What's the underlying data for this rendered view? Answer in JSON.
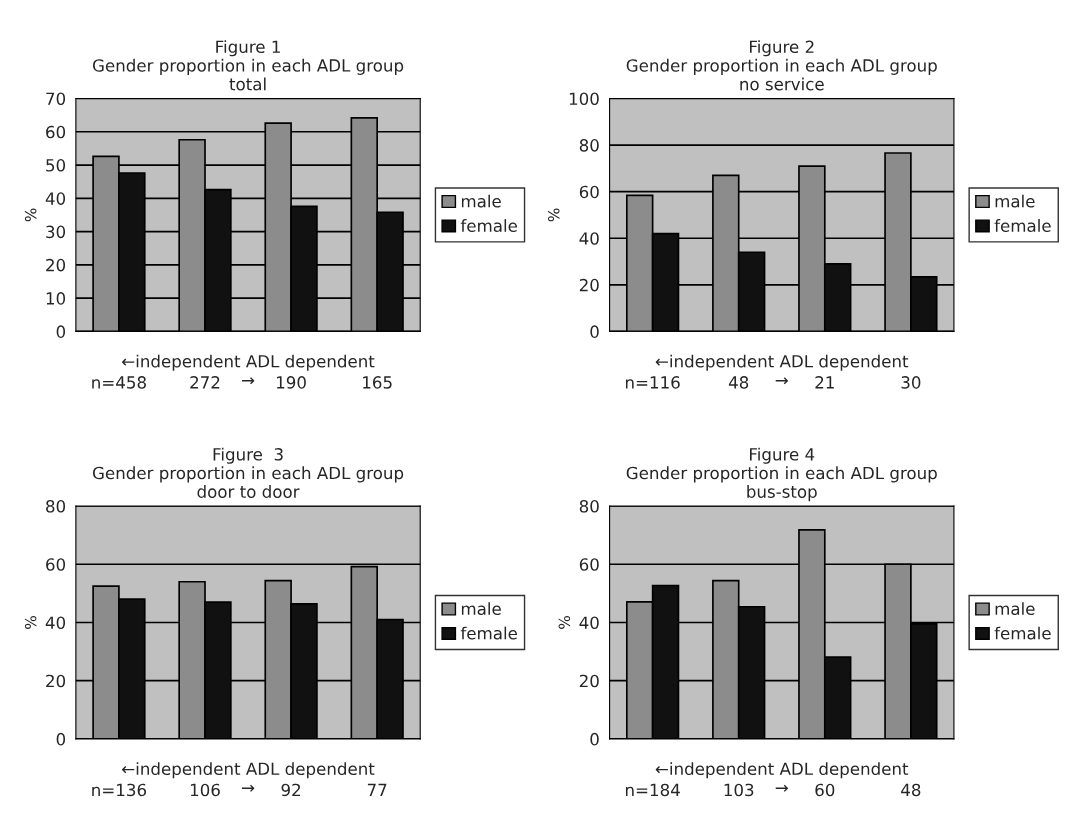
{
  "chart_data": [
    {
      "type": "bar",
      "title": "Figure 1\nGender proportion in each ADL group\ntotal",
      "xlabel": "←independent ADL dependent\n→",
      "ylabel": "%",
      "categories": [
        "n=458",
        "272",
        "190",
        "165"
      ],
      "series": [
        {
          "name": "male",
          "color": "#8c8c8c",
          "values": [
            52.6,
            57.6,
            62.6,
            64.2
          ]
        },
        {
          "name": "female",
          "color": "#111111",
          "values": [
            47.6,
            42.6,
            37.6,
            35.8
          ]
        }
      ],
      "ylim": [
        0,
        70
      ],
      "yticks": [
        0,
        10,
        20,
        30,
        40,
        50,
        60,
        70
      ],
      "grid": "y",
      "legend": "right"
    },
    {
      "type": "bar",
      "title": "Figure 2\nGender proportion in each ADL group\nno service",
      "xlabel": "←independent ADL dependent\n→",
      "ylabel": "%",
      "categories": [
        "n=116",
        "48",
        "21",
        "30"
      ],
      "series": [
        {
          "name": "male",
          "color": "#8c8c8c",
          "values": [
            58.4,
            67,
            71,
            76.6
          ]
        },
        {
          "name": "female",
          "color": "#111111",
          "values": [
            42,
            34,
            29,
            23.4
          ]
        }
      ],
      "ylim": [
        0,
        100
      ],
      "yticks": [
        0,
        20,
        40,
        60,
        80,
        100
      ],
      "grid": "y",
      "legend": "right"
    },
    {
      "type": "bar",
      "title": "Figure  3\nGender proportion in each ADL group\ndoor to door",
      "xlabel": "←independent ADL dependent\n→",
      "ylabel": "%",
      "categories": [
        "n=136",
        "106",
        "92",
        "77"
      ],
      "series": [
        {
          "name": "male",
          "color": "#8c8c8c",
          "values": [
            52.5,
            54,
            54.4,
            59.2
          ]
        },
        {
          "name": "female",
          "color": "#111111",
          "values": [
            48,
            47,
            46.4,
            41
          ]
        }
      ],
      "ylim": [
        0,
        80
      ],
      "yticks": [
        0,
        20,
        40,
        60,
        80
      ],
      "grid": "y",
      "legend": "right"
    },
    {
      "type": "bar",
      "title": "Figure 4\nGender proportion in each ADL group\nbus-stop",
      "xlabel": "←independent ADL dependent\n→",
      "ylabel": "%",
      "categories": [
        "n=184",
        "103",
        "60",
        "48"
      ],
      "series": [
        {
          "name": "male",
          "color": "#8c8c8c",
          "values": [
            47.1,
            54.4,
            71.8,
            60
          ]
        },
        {
          "name": "female",
          "color": "#111111",
          "values": [
            52.7,
            45.4,
            28.1,
            39.5
          ]
        }
      ],
      "ylim": [
        0,
        80
      ],
      "yticks": [
        0,
        20,
        40,
        60,
        80
      ],
      "grid": "y",
      "legend": "right"
    }
  ]
}
